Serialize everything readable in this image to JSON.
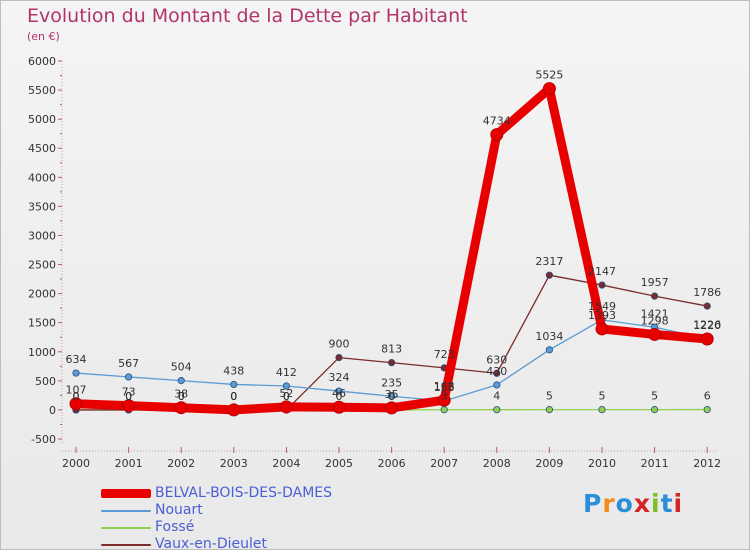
{
  "title": "Evolution du Montant de la Dette par Habitant",
  "subtitle": "(en €)",
  "logo": {
    "text": "Proxiti",
    "letter_colors": [
      "#2b8fd8",
      "#f08c1e",
      "#2b8fd8",
      "#d62222",
      "#7bbf2a",
      "#2b8fd8",
      "#d62222"
    ]
  },
  "chart_data": {
    "type": "line",
    "x": [
      "2000",
      "2001",
      "2002",
      "2003",
      "2004",
      "2005",
      "2006",
      "2007",
      "2008",
      "2009",
      "2010",
      "2011",
      "2012"
    ],
    "y_ticks": [
      "-500",
      "0",
      "500",
      "1000",
      "1500",
      "2000",
      "2500",
      "3000",
      "3500",
      "4000",
      "4500",
      "5000",
      "5500",
      "6000"
    ],
    "ylim": [
      -500,
      6000
    ],
    "grid": false,
    "legend_position": "bottom-left",
    "series": [
      {
        "name": "BELVAL-BOIS-DES-DAMES",
        "color": "#e80000",
        "values": [
          107,
          73,
          38,
          0,
          52,
          46,
          35,
          168,
          4734,
          5525,
          1393,
          1298,
          1220
        ],
        "labels": [
          "107",
          "73",
          "38",
          "0",
          "52",
          "46",
          "35",
          "168",
          "4734",
          "5525",
          "1393",
          "1298",
          "1220"
        ]
      },
      {
        "name": "Nouart",
        "color": "#5b9bd5",
        "values": [
          634,
          567,
          504,
          438,
          412,
          324,
          235,
          153,
          430,
          1034,
          1549,
          1421,
          1226
        ],
        "labels": [
          "634",
          "567",
          "504",
          "438",
          "412",
          "324",
          "235",
          "153",
          "430",
          "1034",
          "1549",
          "1421",
          "1226"
        ]
      },
      {
        "name": "Fossé",
        "color": "#8fd14f",
        "values": [
          0,
          0,
          0,
          0,
          0,
          0,
          0,
          3,
          4,
          5,
          5,
          5,
          6
        ],
        "labels": [
          "0",
          "0",
          "0",
          "0",
          "0",
          "0",
          "0",
          "3",
          "4",
          "5",
          "5",
          "5",
          "6"
        ]
      },
      {
        "name": "Vaux-en-Dieulet",
        "color": "#7a2b2b",
        "values": [
          0,
          0,
          0,
          0,
          0,
          900,
          813,
          723,
          630,
          2317,
          2147,
          1957,
          1786
        ],
        "labels": [
          "0",
          "0",
          "0",
          "0",
          "0",
          "900",
          "813",
          "723",
          "630",
          "2317",
          "2147",
          "1957",
          "1786"
        ]
      }
    ]
  }
}
